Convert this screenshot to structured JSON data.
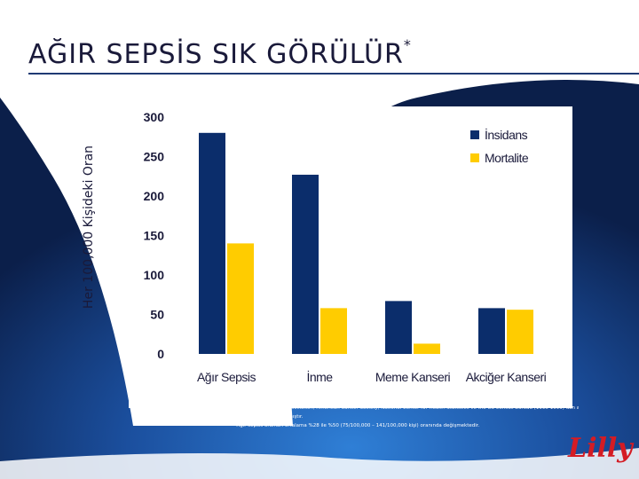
{
  "slide": {
    "title": "AĞIR SEPSİS SIK GÖRÜLÜR",
    "title_marker": "*",
    "logo_text": "Lilly",
    "footnotes": [
      "*The American Heart Association, American Cancer Society, National Center for Health Statistics ve the US Census Bureau (1995-1999) dan alınan bilgiler",
      "doğrultusunda uyarlanmıştır.",
      "* Ağır sepsis oranları ortalama %28 ile %50 (75/100,000 – 141/100,000 kişi) oranında değişmektedir."
    ],
    "colors": {
      "background_dark": "#0b1f4a",
      "background_mid": "#1e5fb3",
      "background_light": "#9cc7ee",
      "title_rule": "#1f3a73"
    }
  },
  "chart_data": {
    "type": "bar",
    "title": "",
    "xlabel": "",
    "ylabel": "Her 100,000 Kişideki Oran",
    "categories": [
      "Ağır Sepsis",
      "İnme",
      "Meme Kanseri",
      "Akciğer Kanseri"
    ],
    "series": [
      {
        "name": "İnsidans",
        "color": "#0b2d6b",
        "values": [
          280,
          227,
          67,
          58
        ]
      },
      {
        "name": "Mortalite",
        "color": "#ffcc00",
        "values": [
          140,
          58,
          13,
          56
        ]
      }
    ],
    "ylim": [
      0,
      300
    ],
    "yticks": [
      0,
      50,
      100,
      150,
      200,
      250,
      300
    ],
    "grid": false,
    "legend_position": "top-right"
  }
}
